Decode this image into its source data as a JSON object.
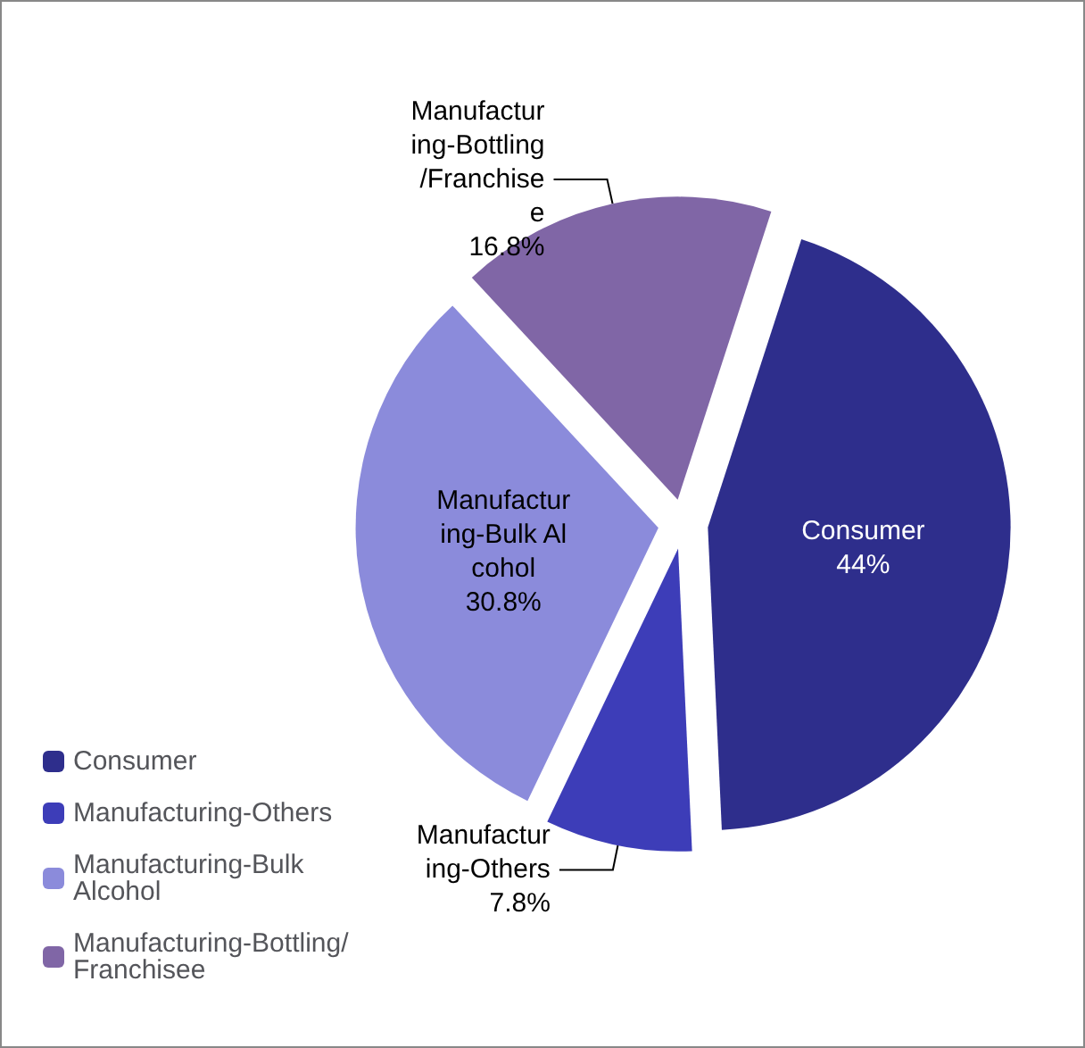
{
  "chart_data": {
    "type": "pie",
    "categories": [
      "Consumer",
      "Manufacturing-Others",
      "Manufacturing-Bulk Alcohol",
      "Manufacturing-Bottling/Franchisee"
    ],
    "values": [
      44,
      7.8,
      30.8,
      16.8
    ],
    "colors": [
      "#2e2e8c",
      "#3d3db8",
      "#8b8bdb",
      "#8066a6"
    ],
    "value_labels": [
      "44%",
      "7.8%",
      "30.8%",
      "16.8%"
    ],
    "legend": "bottom left"
  }
}
